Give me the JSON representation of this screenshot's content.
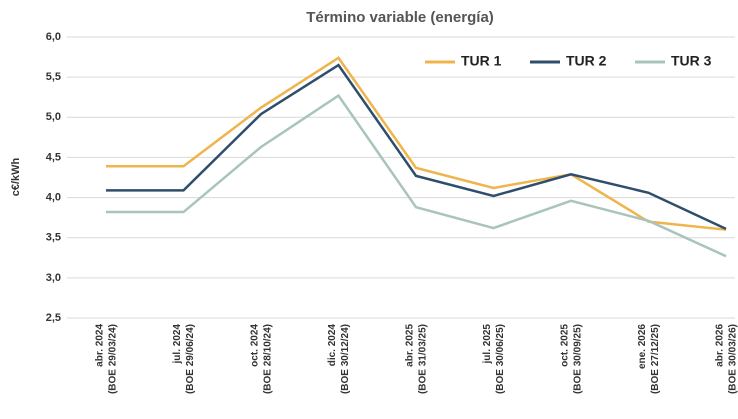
{
  "chart_data": {
    "type": "line",
    "title": "Término variable (energía)",
    "y_label": "c€/kWh",
    "categories": [
      [
        "abr. 2024",
        "(BOE 29/03/24)"
      ],
      [
        "jul. 2024",
        "(BOE 29/06/24)"
      ],
      [
        "oct. 2024",
        "(BOE 28/10/24)"
      ],
      [
        "dic. 2024",
        "(BOE 30/12/24)"
      ],
      [
        "abr. 2025",
        "(BOE 31/03/25)"
      ],
      [
        "jul. 2025",
        "(BOE 30/06/25)"
      ],
      [
        "oct. 2025",
        "(BOE 30/09/25)"
      ],
      [
        "ene. 2026",
        "(BOE 27/12/25)"
      ],
      [
        "abr. 2026",
        "(BOE 30/03/26)"
      ]
    ],
    "series": [
      {
        "name": "TUR 1",
        "color": "#f0b44c",
        "values": [
          4.39,
          4.39,
          5.12,
          5.74,
          4.37,
          4.12,
          4.29,
          3.7,
          3.6
        ]
      },
      {
        "name": "TUR 2",
        "color": "#2e4e6b",
        "values": [
          4.09,
          4.09,
          5.04,
          5.65,
          4.27,
          4.02,
          4.29,
          4.06,
          3.61
        ]
      },
      {
        "name": "TUR 3",
        "color": "#a9c4bc",
        "values": [
          3.82,
          3.82,
          4.63,
          5.27,
          3.88,
          3.62,
          3.96,
          3.71,
          3.27
        ]
      }
    ],
    "ylim": [
      2.5,
      6.0
    ],
    "yticks": [
      {
        "value": 2.5,
        "label": "2,5"
      },
      {
        "value": 3.0,
        "label": "3,0"
      },
      {
        "value": 3.5,
        "label": "3,5"
      },
      {
        "value": 4.0,
        "label": "4,0"
      },
      {
        "value": 4.5,
        "label": "4,5"
      },
      {
        "value": 5.0,
        "label": "5,0"
      },
      {
        "value": 5.5,
        "label": "5,5"
      },
      {
        "value": 6.0,
        "label": "6,0"
      }
    ],
    "grid": true,
    "legend": "top-right"
  }
}
